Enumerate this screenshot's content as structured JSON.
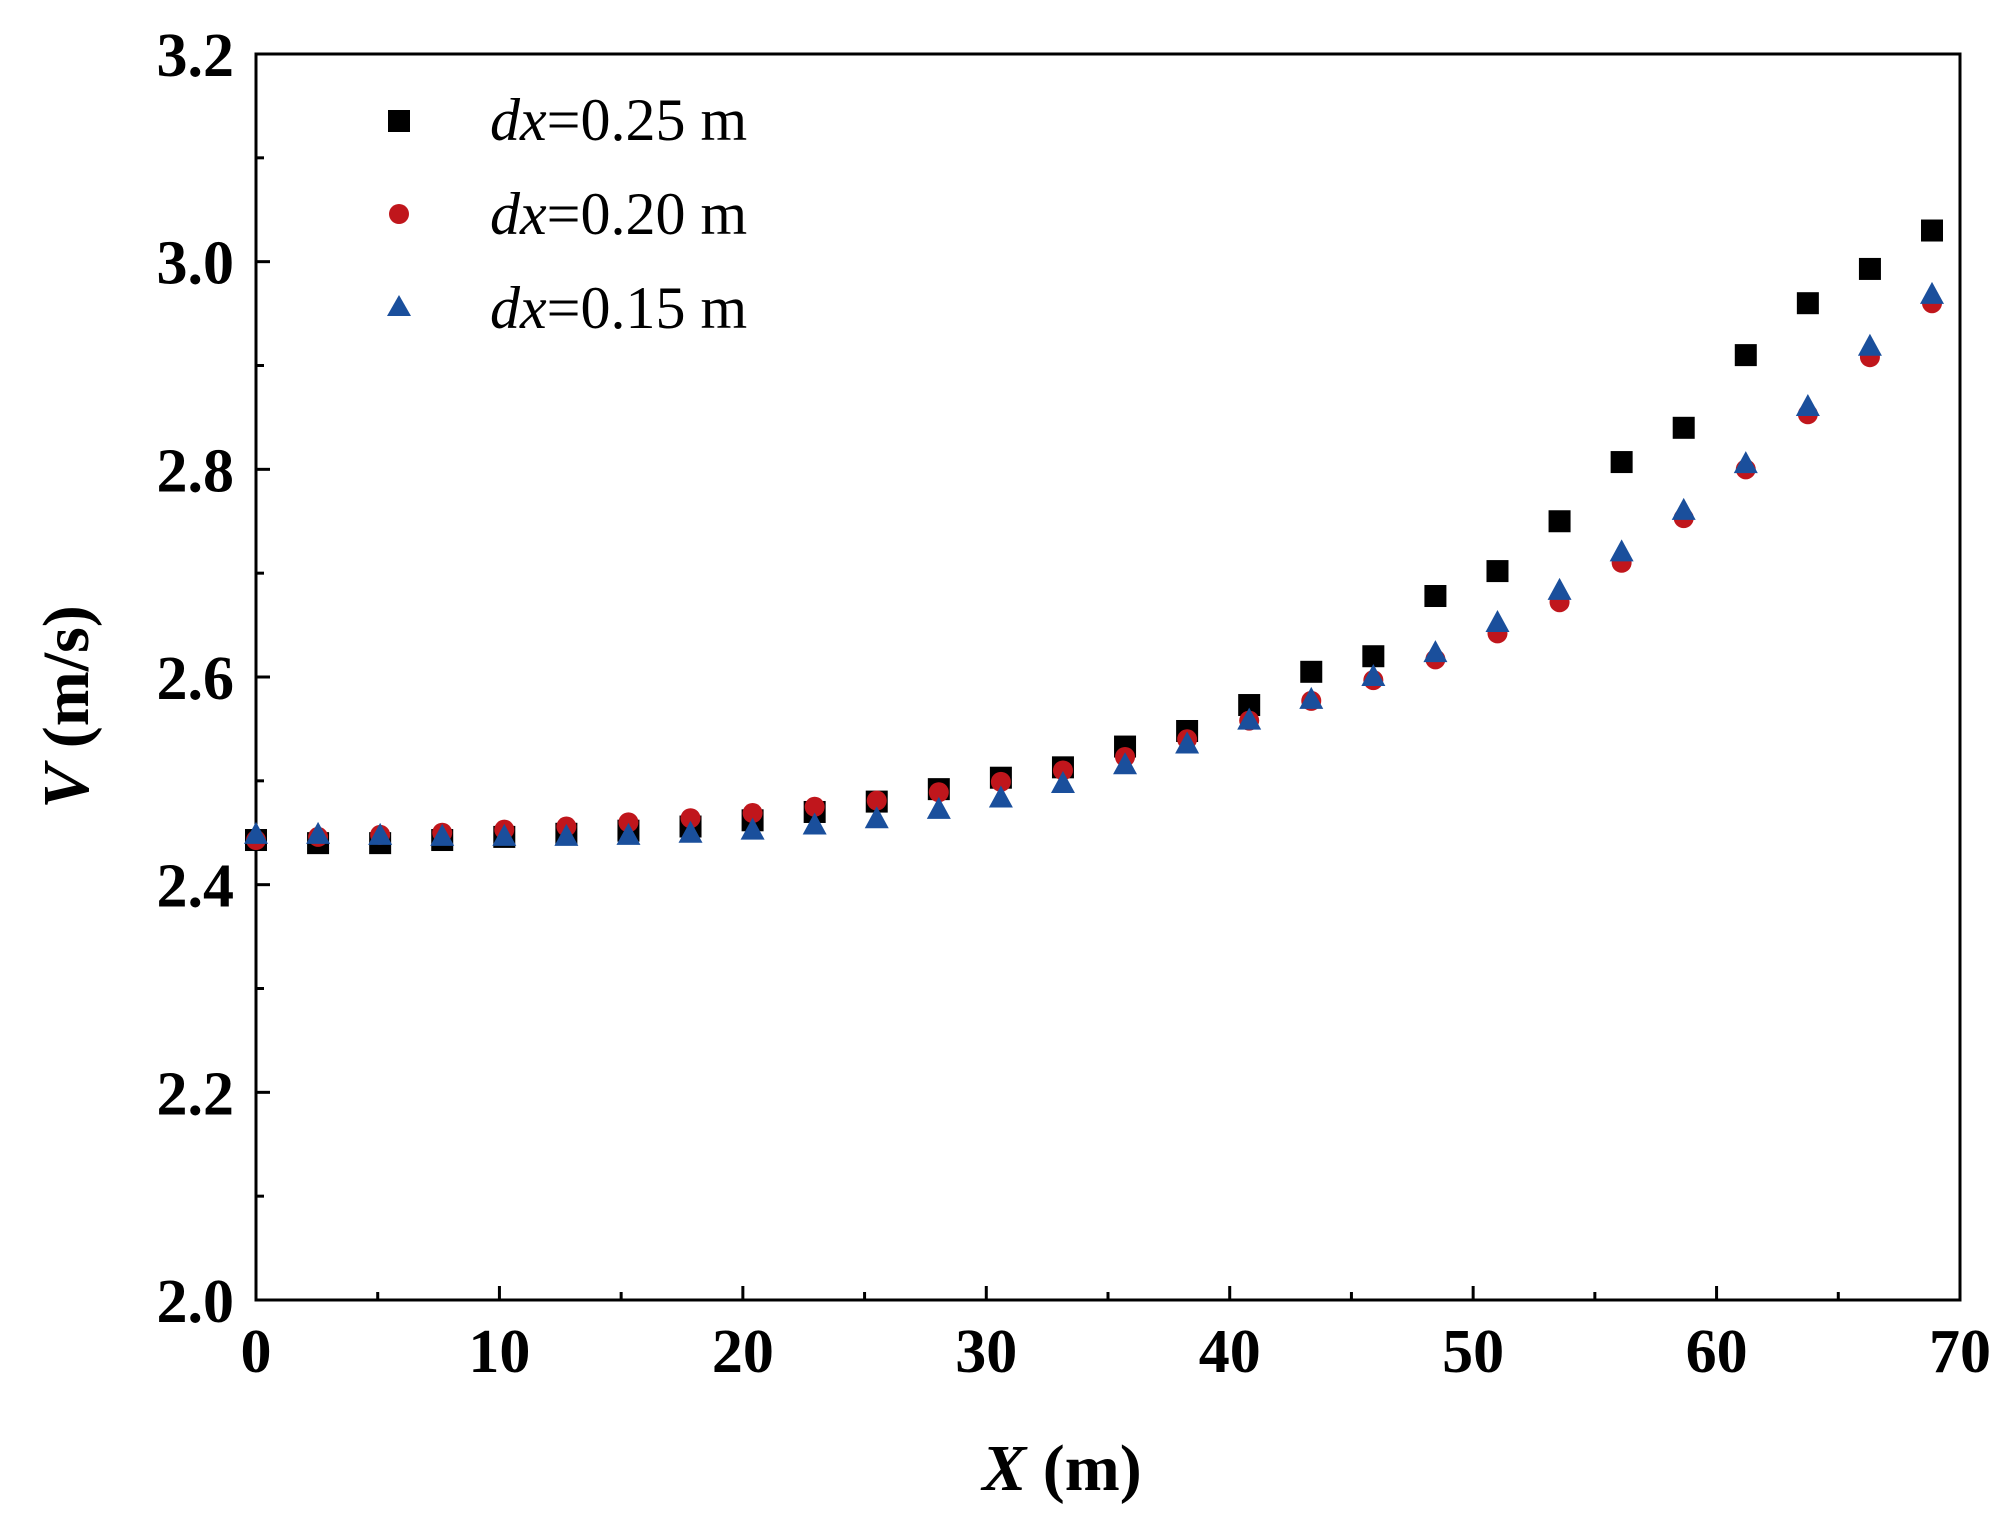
{
  "chart_data": {
    "type": "scatter",
    "title": "",
    "xlabel": {
      "var": "X",
      "unit": " (m)"
    },
    "ylabel": {
      "var": "V",
      "unit": " (m/s)"
    },
    "xlim": [
      0,
      70
    ],
    "ylim": [
      2.0,
      3.2
    ],
    "xticks": [
      0,
      10,
      20,
      30,
      40,
      50,
      60,
      70
    ],
    "yticks": [
      2.0,
      2.2,
      2.4,
      2.6,
      2.8,
      3.0,
      3.2
    ],
    "xtick_labels": [
      "0",
      "10",
      "20",
      "30",
      "40",
      "50",
      "60",
      "70"
    ],
    "ytick_labels": [
      "2.0",
      "2.2",
      "2.4",
      "2.6",
      "2.8",
      "3.0",
      "3.2"
    ],
    "grid": false,
    "legend_position": "top-left",
    "series": [
      {
        "name": "dx=0.25 m",
        "legend_var": "dx",
        "legend_rest": "=0.25 m",
        "marker": "square",
        "color": "#000000",
        "x": [
          0,
          2.55,
          5.1,
          7.65,
          10.2,
          12.75,
          15.3,
          17.85,
          20.4,
          22.95,
          25.5,
          28.05,
          30.6,
          33.15,
          35.7,
          38.25,
          40.8,
          43.35,
          45.9,
          48.45,
          51.0,
          53.55,
          56.1,
          58.65,
          61.2,
          63.75,
          66.3,
          68.85
        ],
        "y": [
          2.443,
          2.44,
          2.44,
          2.443,
          2.446,
          2.449,
          2.452,
          2.456,
          2.462,
          2.47,
          2.48,
          2.492,
          2.503,
          2.513,
          2.533,
          2.548,
          2.573,
          2.605,
          2.62,
          2.678,
          2.702,
          2.75,
          2.807,
          2.84,
          2.91,
          2.96,
          2.993,
          3.03
        ]
      },
      {
        "name": "dx=0.20 m",
        "legend_var": "dx",
        "legend_rest": "=0.20 m",
        "marker": "circle",
        "color": "#c0161c",
        "x": [
          0,
          2.55,
          5.1,
          7.65,
          10.2,
          12.75,
          15.3,
          17.85,
          20.4,
          22.95,
          25.5,
          28.05,
          30.6,
          33.15,
          35.7,
          38.25,
          40.8,
          43.35,
          45.9,
          48.45,
          51.0,
          53.55,
          56.1,
          58.65,
          61.2,
          63.75,
          66.3,
          68.85
        ],
        "y": [
          2.443,
          2.446,
          2.448,
          2.45,
          2.453,
          2.456,
          2.46,
          2.464,
          2.469,
          2.475,
          2.481,
          2.489,
          2.499,
          2.51,
          2.523,
          2.54,
          2.558,
          2.577,
          2.597,
          2.617,
          2.642,
          2.672,
          2.71,
          2.753,
          2.8,
          2.853,
          2.908,
          2.96
        ]
      },
      {
        "name": "dx=0.15 m",
        "legend_var": "dx",
        "legend_rest": "=0.15 m",
        "marker": "triangle",
        "color": "#1a4f9c",
        "x": [
          0,
          2.55,
          5.1,
          7.65,
          10.2,
          12.75,
          15.3,
          17.85,
          20.4,
          22.95,
          25.5,
          28.05,
          30.6,
          33.15,
          35.7,
          38.25,
          40.8,
          43.35,
          45.9,
          48.45,
          51.0,
          53.55,
          56.1,
          58.65,
          61.2,
          63.75,
          66.3,
          68.85
        ],
        "y": [
          2.448,
          2.448,
          2.447,
          2.446,
          2.446,
          2.446,
          2.447,
          2.449,
          2.452,
          2.457,
          2.463,
          2.472,
          2.483,
          2.497,
          2.515,
          2.535,
          2.558,
          2.578,
          2.6,
          2.623,
          2.652,
          2.683,
          2.72,
          2.76,
          2.805,
          2.86,
          2.918,
          2.968
        ]
      }
    ]
  }
}
